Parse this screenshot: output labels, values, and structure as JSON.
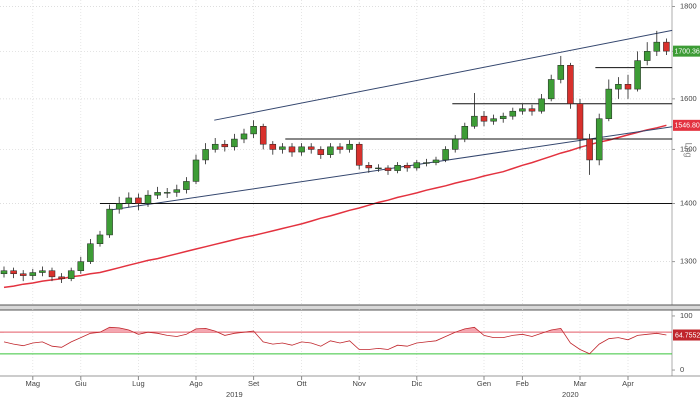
{
  "chart_data": {
    "type": "candlestick",
    "log_scale": true,
    "scale_label": "Log",
    "grid": true,
    "up_color": "#3d9c36",
    "down_color": "#d8312d",
    "categories": [
      null,
      null,
      null,
      "Mag",
      null,
      null,
      null,
      null,
      "Giu",
      null,
      null,
      null,
      null,
      null,
      "Lug",
      null,
      null,
      null,
      null,
      null,
      "Ago",
      null,
      null,
      null,
      null,
      null,
      "Set",
      null,
      null,
      null,
      null,
      "Ott",
      null,
      null,
      null,
      null,
      null,
      "Nov",
      null,
      null,
      null,
      null,
      null,
      "Dic",
      null,
      null,
      null,
      null,
      null,
      null,
      "Gen",
      null,
      null,
      null,
      "Feb",
      null,
      null,
      null,
      null,
      null,
      "Mar",
      null,
      null,
      null,
      null,
      "Apr",
      null,
      null,
      null,
      null
    ],
    "years": [
      null,
      null,
      null,
      null,
      null,
      null,
      null,
      null,
      null,
      null,
      null,
      null,
      null,
      null,
      null,
      null,
      null,
      null,
      null,
      null,
      null,
      null,
      null,
      null,
      "2019",
      null,
      null,
      null,
      null,
      null,
      null,
      null,
      null,
      null,
      null,
      null,
      null,
      null,
      null,
      null,
      null,
      null,
      null,
      null,
      null,
      null,
      null,
      null,
      null,
      null,
      null,
      null,
      null,
      null,
      null,
      null,
      null,
      null,
      null,
      "2020",
      null,
      null,
      null,
      null,
      null,
      null,
      null,
      null,
      null,
      null
    ],
    "open": [
      1280,
      1285,
      1280,
      1277,
      1282,
      1285,
      1275,
      1272,
      1285,
      1300,
      1330,
      1345,
      1390,
      1400,
      1410,
      1400,
      1415,
      1420,
      1420,
      1425,
      1440,
      1480,
      1500,
      1510,
      1505,
      1520,
      1530,
      1545,
      1510,
      1500,
      1505,
      1495,
      1505,
      1500,
      1490,
      1505,
      1500,
      1510,
      1470,
      1465,
      1465,
      1460,
      1470,
      1465,
      1475,
      1475,
      1480,
      1500,
      1520,
      1545,
      1565,
      1555,
      1560,
      1565,
      1575,
      1580,
      1575,
      1600,
      1640,
      1670,
      1590,
      1520,
      1480,
      1560,
      1620,
      1630,
      1620,
      1680,
      1700,
      1720
    ],
    "high": [
      1292,
      1290,
      1286,
      1288,
      1292,
      1290,
      1281,
      1290,
      1308,
      1338,
      1352,
      1398,
      1412,
      1420,
      1418,
      1424,
      1430,
      1428,
      1434,
      1448,
      1490,
      1512,
      1522,
      1518,
      1530,
      1540,
      1557,
      1550,
      1516,
      1512,
      1512,
      1512,
      1512,
      1506,
      1512,
      1512,
      1518,
      1514,
      1476,
      1472,
      1470,
      1476,
      1475,
      1480,
      1482,
      1486,
      1506,
      1528,
      1552,
      1612,
      1575,
      1568,
      1572,
      1582,
      1590,
      1588,
      1610,
      1650,
      1690,
      1675,
      1600,
      1530,
      1570,
      1640,
      1645,
      1650,
      1700,
      1720,
      1745,
      1728
    ],
    "low": [
      1274,
      1273,
      1268,
      1270,
      1276,
      1268,
      1265,
      1268,
      1280,
      1296,
      1325,
      1340,
      1382,
      1393,
      1388,
      1394,
      1408,
      1410,
      1412,
      1418,
      1435,
      1472,
      1494,
      1496,
      1498,
      1512,
      1522,
      1500,
      1490,
      1492,
      1486,
      1488,
      1492,
      1482,
      1484,
      1492,
      1494,
      1462,
      1456,
      1458,
      1452,
      1455,
      1458,
      1460,
      1468,
      1470,
      1476,
      1494,
      1514,
      1540,
      1545,
      1548,
      1552,
      1558,
      1568,
      1566,
      1570,
      1595,
      1632,
      1580,
      1500,
      1452,
      1470,
      1555,
      1600,
      1600,
      1615,
      1670,
      1690,
      1692
    ],
    "close": [
      1285,
      1280,
      1277,
      1282,
      1285,
      1275,
      1272,
      1285,
      1300,
      1330,
      1345,
      1390,
      1400,
      1410,
      1400,
      1415,
      1420,
      1420,
      1425,
      1440,
      1480,
      1500,
      1510,
      1505,
      1520,
      1530,
      1545,
      1510,
      1500,
      1505,
      1495,
      1505,
      1500,
      1490,
      1505,
      1500,
      1510,
      1470,
      1465,
      1465,
      1460,
      1470,
      1465,
      1475,
      1475,
      1480,
      1500,
      1520,
      1545,
      1565,
      1555,
      1560,
      1565,
      1575,
      1580,
      1575,
      1600,
      1640,
      1670,
      1590,
      1520,
      1480,
      1560,
      1620,
      1630,
      1620,
      1680,
      1700,
      1720,
      1700.3652
    ],
    "last_price_color": "#3d9c36",
    "ylim": [
      1230,
      1815
    ],
    "yticks": [
      1300,
      1400,
      1500,
      1600,
      1700,
      1800
    ],
    "moving_average": {
      "color": "#e3323f",
      "values": [
        1258,
        1260,
        1263,
        1265,
        1268,
        1270,
        1272,
        1275,
        1277,
        1280,
        1282,
        1286,
        1290,
        1294,
        1298,
        1302,
        1305,
        1309,
        1313,
        1317,
        1321,
        1325,
        1329,
        1333,
        1337,
        1341,
        1344,
        1348,
        1352,
        1356,
        1360,
        1364,
        1369,
        1374,
        1378,
        1383,
        1388,
        1392,
        1397,
        1402,
        1406,
        1411,
        1415,
        1419,
        1424,
        1428,
        1432,
        1437,
        1441,
        1445,
        1450,
        1454,
        1458,
        1464,
        1470,
        1475,
        1481,
        1487,
        1493,
        1498,
        1504,
        1509,
        1514,
        1518,
        1523,
        1528,
        1533,
        1538,
        1542,
        1546.8052
      ]
    },
    "trend_lines": [
      {
        "color": "#34466e",
        "x": [
          21.9,
          69.6
        ],
        "y": [
          1557,
          1746
        ]
      },
      {
        "color": "#34466e",
        "x": [
          10.9,
          69.6
        ],
        "y": [
          1388,
          1544
        ]
      },
      {
        "color": "#111111",
        "x": [
          10,
          69.6
        ],
        "y": [
          1400,
          1400
        ]
      },
      {
        "color": "#111111",
        "x": [
          29.3,
          69.6
        ],
        "y": [
          1520,
          1520
        ]
      },
      {
        "color": "#111111",
        "x": [
          46.7,
          69.6
        ],
        "y": [
          1590,
          1590
        ]
      },
      {
        "color": "#111111",
        "x": [
          61.6,
          69.6
        ],
        "y": [
          1665,
          1665
        ]
      }
    ],
    "indicator": {
      "type": "line",
      "color": "#c0262c",
      "fill_color": "#f4a6b0",
      "values": [
        52,
        48,
        45,
        50,
        52,
        44,
        42,
        52,
        60,
        68,
        70,
        79,
        78,
        74,
        66,
        70,
        68,
        64,
        62,
        66,
        76,
        77,
        72,
        64,
        68,
        70,
        72,
        52,
        48,
        50,
        46,
        52,
        50,
        44,
        54,
        50,
        54,
        38,
        38,
        40,
        38,
        46,
        44,
        50,
        52,
        54,
        62,
        70,
        76,
        79,
        64,
        60,
        60,
        64,
        66,
        62,
        68,
        74,
        77,
        50,
        38,
        30,
        48,
        58,
        60,
        56,
        64,
        66,
        68,
        64.7552
      ],
      "ylim": [
        -11,
        111
      ],
      "yticks": [
        0,
        100
      ],
      "levels": [
        {
          "value": 70,
          "color": "#e0505e"
        },
        {
          "value": 30,
          "color": "#39c43a"
        }
      ]
    }
  }
}
